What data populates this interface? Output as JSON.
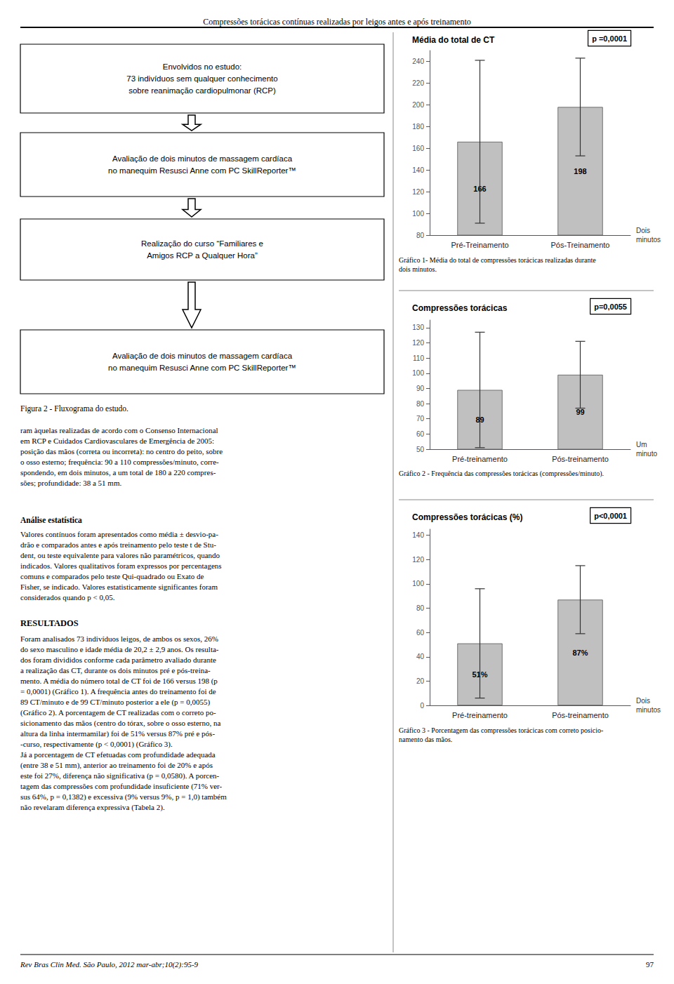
{
  "title": "Compressões torácicas contínuas realizadas por leigos antes e após treinamento",
  "annotations": [
    "Envolvidos no estudo:\n73 indivíduos sem qualquer conhecimento\nsobre reanimação cardiopulmonar (RCP)",
    "Avaliação de dois minutos de massagem cardíaca\nno manequim Resusci Anne com PC SkillReporter™",
    "Realização do curso “Familiares e\nAmigos RCP a Qualquer Hora”",
    "Avaliação de dois minutos de massagem cardíaca\nno manequim Resusci Anne com PC SkillReporter™",
    "Figura 2 - Fluxograma do estudo.",
    "ram àquelas realizadas de acordo com o Consenso Internacional\nem RCP e Cuidados Cardiovasculares de Emergência de 2005:\nposição das mãos (correta ou incorreta): no centro do peito, sobre\no osso esterno; frequência: 90 a 110 compressões/minuto, corre-\nspondendo, em dois minutos, a um total de 180 a 220 compres-\nsões; profundidade: 38 a 51 mm.",
    "Análise estatística",
    "Valores contínuos foram apresentados como média ± desvio-pa-\ndrão e comparados antes e após treinamento pelo teste t de Stu-\ndent, ou teste equivalente para valores não paramétricos, quando\nindicados. Valores qualitativos foram expressos por percentagens\ncomuns e comparados pelo teste Qui-quadrado ou Exato de\nFisher, se indicado. Valores estatisticamente significantes foram\nconsiderados quando p < 0,05.",
    "RESULTADOS",
    "Foram analisados 73 indivíduos leigos, de ambos os sexos, 26%\ndo sexo masculino e idade média de 20,2 ± 2,9 anos. Os resulta-\ndos foram divididos conforme cada parâmetro avaliado durante\na realização das CT, durante os dois minutos pré e pós-treina-\nmento. A média do número total de CT foi de 166 versus 198 (p\n= 0,0001) (Gráfico 1). A frequência antes do treinamento foi de\n89 CT/minuto e de 99 CT/minuto posterior a ele (p = 0,0055)\n(Gráfico 2). A porcentagem de CT realizadas com o correto po-\nsicionamento das mãos (centro do tórax, sobre o osso esterno, na\naltura da linha intermamilar) foi de 51% versus 87% pré e pós-\n-curso, respectivamente (p < 0,0001) (Gráfico 3).\nJá a porcentagem de CT efetuadas com profundidade adequada\n(entre 38 e 51 mm), anterior ao treinamento foi de 20% e após\neste foi 27%, diferença não significativa (p = 0,0580). A porcen-\ntagem das compressões com profundidade insuficiente (71% ver-\nsus 64%, p = 0,1382) e excessiva (9% versus 9%, p = 1,0) também\nnão revelaram diferença expressiva (Tabela 2).",
    "Rev Bras Clin Med. São Paulo, 2012 mar-abr;10(2):95-9",
    "97"
  ],
  "chart_data": [
    {
      "type": "bar",
      "title": "Média do total de CT",
      "categories": [
        "Pré-Treinamento",
        "Pós-Treinamento"
      ],
      "values": [
        166,
        198
      ],
      "errors": [
        75,
        45
      ],
      "ylim": [
        80,
        250
      ],
      "yticks": [
        80,
        100,
        120,
        140,
        160,
        180,
        200,
        220,
        240
      ],
      "xlabel": "Dois\nminutos",
      "annotations": [
        "p =0,0001",
        "Gráfico 1- Média do total de compressões torácicas realizadas durante\ndois minutos."
      ],
      "color": "#C0C0C0",
      "data_labels": true,
      "grid": false
    },
    {
      "type": "bar",
      "title": "Compressões torácicas",
      "categories": [
        "Pré-treinamento",
        "Pós-treinamento"
      ],
      "values": [
        89,
        99
      ],
      "errors": [
        38,
        22
      ],
      "ylim": [
        50,
        135
      ],
      "yticks": [
        50,
        60,
        70,
        80,
        90,
        100,
        110,
        120,
        130
      ],
      "xlabel": "Um\nminuto",
      "annotations": [
        "p=0,0055",
        "Gráfico 2 - Frequência das compressões torácicas (compressões/minuto)."
      ],
      "color": "#C0C0C0",
      "data_labels": true,
      "grid": false
    },
    {
      "type": "bar",
      "title": "Compressões torácicas (%)",
      "categories": [
        "Pré-treinamento",
        "Pós-treinamento"
      ],
      "values": [
        51,
        87
      ],
      "value_labels": [
        "51%",
        "87%"
      ],
      "errors": [
        45,
        28
      ],
      "ylim": [
        0,
        145
      ],
      "yticks": [
        0,
        20,
        40,
        60,
        80,
        100,
        120,
        140
      ],
      "xlabel": "Dois\nminutos",
      "annotations": [
        "p<0,0001",
        "Gráfico 3 - Porcentagem das compressões torácicas com correto posicio-\nnamento das mãos."
      ],
      "color": "#C0C0C0",
      "data_labels": true,
      "grid": false
    }
  ]
}
